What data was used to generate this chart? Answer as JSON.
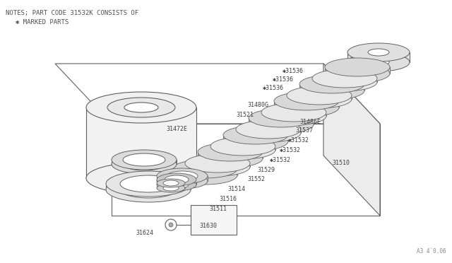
{
  "notes_line1": "NOTES; PART CODE 31532K CONSISTS OF",
  "notes_line2": "✱ MARKED PARTS",
  "reference": "A3 4´0.06",
  "background_color": "#ffffff",
  "line_color": "#606060",
  "text_color": "#404040",
  "fig_w": 6.4,
  "fig_h": 3.72,
  "dpi": 100
}
